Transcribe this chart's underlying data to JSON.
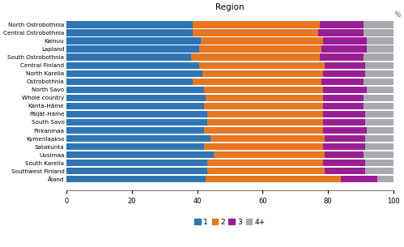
{
  "title": "Region",
  "regions": [
    "North Ostrobothnia",
    "Central Ostrobothnia",
    "Kainuu",
    "Lapland",
    "South Ostrobothnia",
    "Central Finland",
    "North Karelia",
    "Ostrobothnia",
    "North Savo",
    "Whole country",
    "Kanta-Häme",
    "Päijät-Häme",
    "South Savo",
    "Pirkanmaa",
    "Kymenlaakso",
    "Satakunta",
    "Uusimaa",
    "South Karelia",
    "Southwest Finland",
    "Åland"
  ],
  "data": {
    "1": [
      38.5,
      38.5,
      41.0,
      40.5,
      38.0,
      40.5,
      41.5,
      38.5,
      42.0,
      42.5,
      42.0,
      43.0,
      43.0,
      42.0,
      44.0,
      42.0,
      45.0,
      43.0,
      43.0,
      42.5
    ],
    "2": [
      39.0,
      38.5,
      37.5,
      37.5,
      39.5,
      38.5,
      37.0,
      39.5,
      36.5,
      36.0,
      36.5,
      35.5,
      35.5,
      36.5,
      35.0,
      36.5,
      34.0,
      35.5,
      36.0,
      41.5
    ],
    "3": [
      13.5,
      14.0,
      13.5,
      14.0,
      13.5,
      12.5,
      13.0,
      13.0,
      13.5,
      12.5,
      12.5,
      13.0,
      13.0,
      13.5,
      12.5,
      13.0,
      12.0,
      13.0,
      12.5,
      11.0
    ],
    "4+": [
      9.0,
      9.0,
      8.0,
      8.0,
      9.0,
      8.5,
      8.5,
      9.0,
      8.0,
      9.0,
      9.0,
      8.5,
      8.5,
      8.0,
      8.5,
      8.5,
      9.0,
      8.5,
      8.5,
      5.0
    ]
  },
  "colors": {
    "1": "#2E75B6",
    "2": "#E87722",
    "3": "#9B1D96",
    "4+": "#A9A9B0"
  },
  "xlim": [
    0,
    100
  ],
  "xticks": [
    0,
    20,
    40,
    60,
    80,
    100
  ],
  "xlabel": "%",
  "bar_height": 0.82
}
